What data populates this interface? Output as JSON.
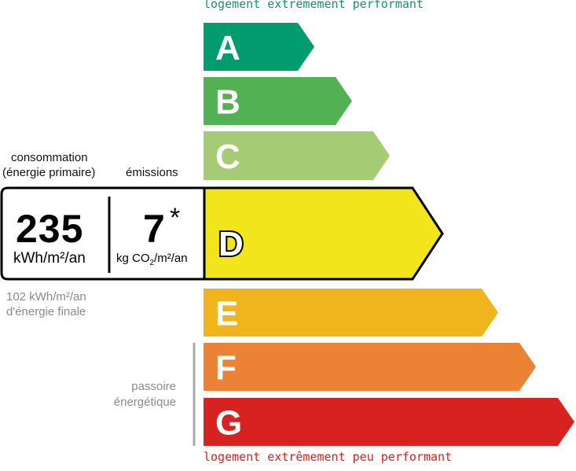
{
  "header_text": "logement extrêmement performant",
  "footer_text": "logement extrêmement peu performant",
  "consumption": {
    "label_line1": "consommation",
    "label_line2": "(énergie primaire)",
    "value": "235",
    "unit": "kWh/m²/an"
  },
  "emissions": {
    "label": "émissions",
    "value": "7",
    "asterisk": "*",
    "unit_prefix": "kg CO",
    "unit_sub": "2",
    "unit_suffix": "/m²/an"
  },
  "final_energy": {
    "line1": "102 kWh/m²/an",
    "line2": "d'énergie finale"
  },
  "passoire": {
    "line1": "passoire",
    "line2": "énergétique"
  },
  "current_class": "D",
  "classes": [
    {
      "letter": "A",
      "color": "#009c6d"
    },
    {
      "letter": "B",
      "color": "#52b153"
    },
    {
      "letter": "C",
      "color": "#a5cc74"
    },
    {
      "letter": "D",
      "color": "#f2e51c"
    },
    {
      "letter": "E",
      "color": "#f0b41c"
    },
    {
      "letter": "F",
      "color": "#eb8235"
    },
    {
      "letter": "G",
      "color": "#d7221f"
    }
  ],
  "colors": {
    "header": "#1f8c6c",
    "footer": "#d7221f",
    "outline": "#000000"
  }
}
